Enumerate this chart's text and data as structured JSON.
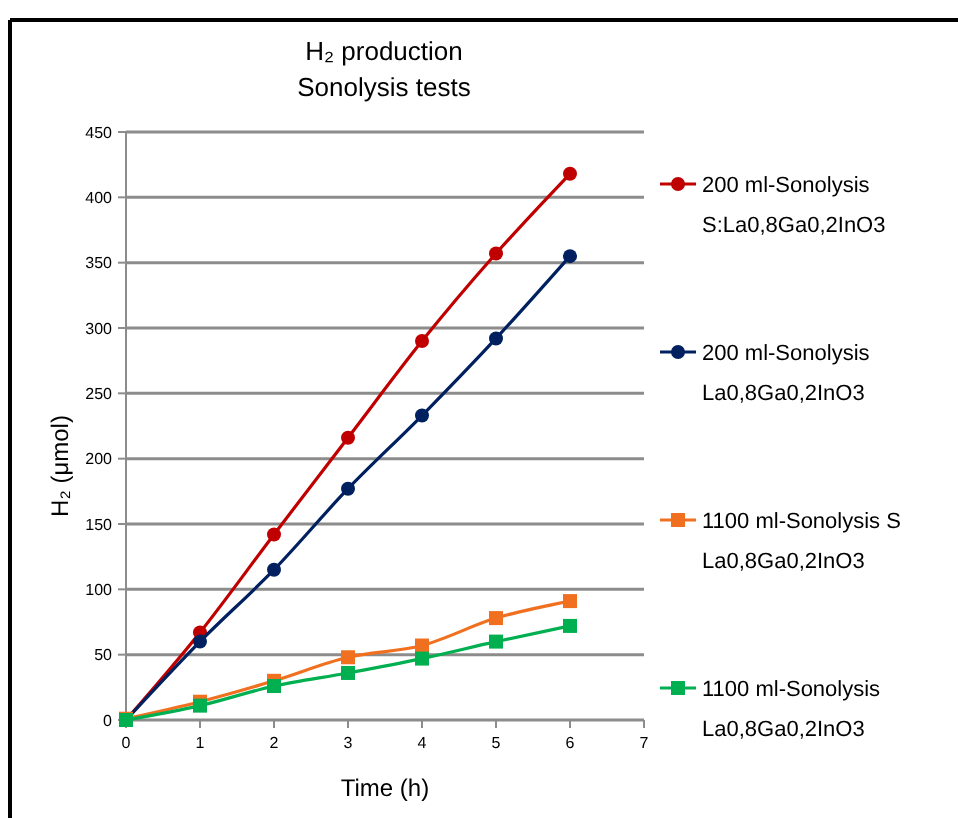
{
  "chart_data": {
    "type": "line",
    "title": "H₂ production",
    "subtitle": "Sonolysis tests",
    "xlabel": "Time (h)",
    "ylabel": "H₂ (μmol)",
    "x": [
      0,
      1,
      2,
      3,
      4,
      5,
      6
    ],
    "xlim": [
      0,
      7
    ],
    "xticks": [
      0,
      1,
      2,
      3,
      4,
      5,
      6,
      7
    ],
    "ylim": [
      0,
      450
    ],
    "yticks": [
      0,
      50,
      100,
      150,
      200,
      250,
      300,
      350,
      400,
      450
    ],
    "grid": "y",
    "legend": "right",
    "series": [
      {
        "name": "200 ml-Sonolysis S:La0,8Ga0,2InO3",
        "color": "#c00000",
        "marker": "circle",
        "values": [
          0,
          67,
          142,
          216,
          290,
          357,
          418
        ]
      },
      {
        "name": "200 ml-Sonolysis La0,8Ga0,2InO3",
        "color": "#002060",
        "marker": "circle",
        "values": [
          0,
          60,
          115,
          177,
          233,
          292,
          355
        ]
      },
      {
        "name": "1100 ml-Sonolysis S La0,8Ga0,2InO3",
        "color": "#f07020",
        "marker": "square",
        "values": [
          1,
          14,
          30,
          48,
          57,
          78,
          91
        ]
      },
      {
        "name": "1100 ml-Sonolysis La0,8Ga0,2InO3",
        "color": "#00b050",
        "marker": "square",
        "values": [
          0,
          11,
          26,
          36,
          47,
          60,
          72
        ]
      }
    ]
  }
}
